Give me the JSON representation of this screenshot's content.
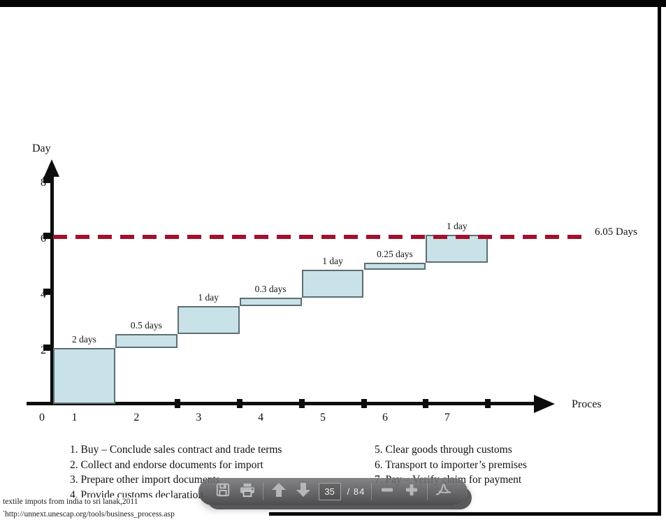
{
  "chart_data": {
    "type": "bar",
    "variant": "cumulative-staircase-process-analysis",
    "title": "",
    "xlabel": "Proces",
    "ylabel": "Day",
    "origin_label": "0",
    "y_ticks": [
      2,
      4,
      6,
      8
    ],
    "ylim": [
      0,
      8.8
    ],
    "grid": false,
    "steps": [
      {
        "process": "1",
        "duration_label": "2 days",
        "start": 0,
        "end": 2
      },
      {
        "process": "2",
        "duration_label": "0.5 days",
        "start": 2,
        "end": 2.5
      },
      {
        "process": "3",
        "duration_label": "1 day",
        "start": 2.5,
        "end": 3.5
      },
      {
        "process": "4",
        "duration_label": "0.3 days",
        "start": 3.5,
        "end": 3.8
      },
      {
        "process": "5",
        "duration_label": "1 day",
        "start": 3.8,
        "end": 4.8
      },
      {
        "process": "6",
        "duration_label": "0.25 days",
        "start": 4.8,
        "end": 5.05
      },
      {
        "process": "7",
        "duration_label": "1 day",
        "start": 5.05,
        "end": 6.05
      }
    ],
    "total_line": {
      "value": 6.05,
      "label": "6.05 Days"
    },
    "colors": {
      "bar_fill": "#c9e2e8",
      "bar_border": "#5d6e73",
      "total_line": "#a0122e",
      "axis": "#0d0d0d"
    }
  },
  "legend": {
    "columns": [
      [
        "1. Buy – Conclude sales contract and trade terms",
        "2. Collect and endorse documents for import",
        "3. Prepare other import documents",
        "4. Provide customs declaration"
      ],
      [
        "5. Clear goods through customs",
        "6. Transport to importer’s premises",
        "7. Pay – Verify claim for payment"
      ]
    ]
  },
  "toolbar": {
    "icons": [
      "save-icon",
      "print-icon",
      "page-up-icon",
      "page-down-icon",
      "zoom-out-icon",
      "zoom-in-icon",
      "acrobat-icon"
    ],
    "page_current": "35",
    "page_separator": "/",
    "page_total": "84"
  },
  "footnote": {
    "line1": "textile impots from india to sri lanak,2011",
    "marker": "-",
    "line2": "http://unnext.unescap.org/tools/business_process.asp"
  }
}
